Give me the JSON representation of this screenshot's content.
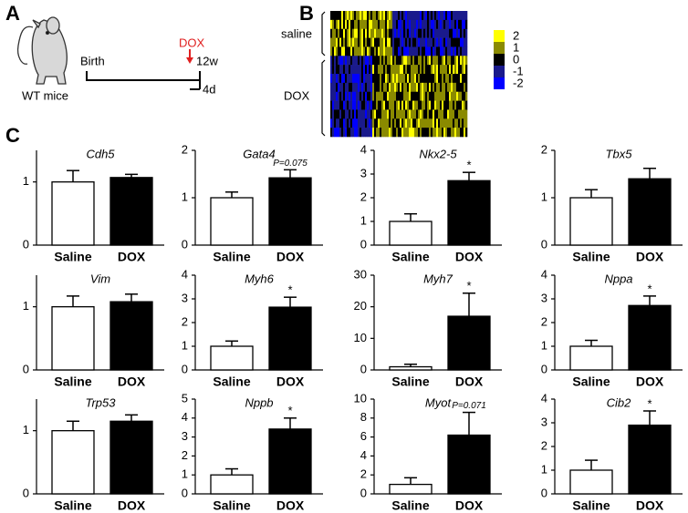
{
  "panel_labels": {
    "a": "A",
    "b": "B",
    "c": "C"
  },
  "panel_a": {
    "mouse_label": "WT mice",
    "birth": "Birth",
    "treatment": "DOX",
    "age": "12w",
    "duration": "4d"
  },
  "panel_b": {
    "groups": [
      "saline",
      "DOX"
    ],
    "colorbar": [
      {
        "value": 2,
        "color": "#ffff00"
      },
      {
        "value": 1,
        "color": "#8a8a00"
      },
      {
        "value": 0,
        "color": "#000000"
      },
      {
        "value": -1,
        "color": "#1a1a8c"
      },
      {
        "value": -2,
        "color": "#0000ff"
      }
    ]
  },
  "chart_data": [
    {
      "type": "bar",
      "title": "Cdh5",
      "categories": [
        "Saline",
        "DOX"
      ],
      "values": [
        1.0,
        1.07
      ],
      "errors": [
        0.18,
        0.05
      ],
      "colors": [
        "#ffffff",
        "#000000"
      ],
      "ylim": [
        0,
        1.5
      ],
      "yticks": [
        0,
        1
      ]
    },
    {
      "type": "bar",
      "title": "Gata4",
      "categories": [
        "Saline",
        "DOX"
      ],
      "values": [
        1.0,
        1.42
      ],
      "errors": [
        0.12,
        0.17
      ],
      "colors": [
        "#ffffff",
        "#000000"
      ],
      "ylim": [
        0,
        2
      ],
      "yticks": [
        0,
        1,
        2
      ],
      "annotation": "P=0.075"
    },
    {
      "type": "bar",
      "title": "Nkx2-5",
      "categories": [
        "Saline",
        "DOX"
      ],
      "values": [
        1.0,
        2.72
      ],
      "errors": [
        0.32,
        0.35
      ],
      "colors": [
        "#ffffff",
        "#000000"
      ],
      "ylim": [
        0,
        4
      ],
      "yticks": [
        0,
        1,
        2,
        3,
        4
      ],
      "annotation": "*"
    },
    {
      "type": "bar",
      "title": "Tbx5",
      "categories": [
        "Saline",
        "DOX"
      ],
      "values": [
        1.0,
        1.4
      ],
      "errors": [
        0.17,
        0.22
      ],
      "colors": [
        "#ffffff",
        "#000000"
      ],
      "ylim": [
        0,
        2
      ],
      "yticks": [
        0,
        1,
        2
      ]
    },
    {
      "type": "bar",
      "title": "Vim",
      "categories": [
        "Saline",
        "DOX"
      ],
      "values": [
        1.0,
        1.08
      ],
      "errors": [
        0.17,
        0.12
      ],
      "colors": [
        "#ffffff",
        "#000000"
      ],
      "ylim": [
        0,
        1.5
      ],
      "yticks": [
        0,
        1
      ]
    },
    {
      "type": "bar",
      "title": "Myh6",
      "categories": [
        "Saline",
        "DOX"
      ],
      "values": [
        1.0,
        2.65
      ],
      "errors": [
        0.22,
        0.42
      ],
      "colors": [
        "#ffffff",
        "#000000"
      ],
      "ylim": [
        0,
        4
      ],
      "yticks": [
        0,
        1,
        2,
        3,
        4
      ],
      "annotation": "*"
    },
    {
      "type": "bar",
      "title": "Myh7",
      "categories": [
        "Saline",
        "DOX"
      ],
      "values": [
        1.0,
        17
      ],
      "errors": [
        0.8,
        7.3
      ],
      "colors": [
        "#ffffff",
        "#000000"
      ],
      "ylim": [
        0,
        30
      ],
      "yticks": [
        0,
        10,
        20,
        30
      ],
      "annotation": "*"
    },
    {
      "type": "bar",
      "title": "Nppa",
      "categories": [
        "Saline",
        "DOX"
      ],
      "values": [
        1.0,
        2.72
      ],
      "errors": [
        0.25,
        0.4
      ],
      "colors": [
        "#ffffff",
        "#000000"
      ],
      "ylim": [
        0,
        4
      ],
      "yticks": [
        0,
        1,
        2,
        3,
        4
      ],
      "annotation": "*"
    },
    {
      "type": "bar",
      "title": "Trp53",
      "categories": [
        "Saline",
        "DOX"
      ],
      "values": [
        1.0,
        1.15
      ],
      "errors": [
        0.15,
        0.1
      ],
      "colors": [
        "#ffffff",
        "#000000"
      ],
      "ylim": [
        0,
        1.5
      ],
      "yticks": [
        0,
        1
      ]
    },
    {
      "type": "bar",
      "title": "Nppb",
      "categories": [
        "Saline",
        "DOX"
      ],
      "values": [
        1.0,
        3.42
      ],
      "errors": [
        0.32,
        0.58
      ],
      "colors": [
        "#ffffff",
        "#000000"
      ],
      "ylim": [
        0,
        5
      ],
      "yticks": [
        0,
        1,
        2,
        3,
        4,
        5
      ],
      "annotation": "*"
    },
    {
      "type": "bar",
      "title": "Myot",
      "categories": [
        "Saline",
        "DOX"
      ],
      "values": [
        1.0,
        6.2
      ],
      "errors": [
        0.7,
        2.4
      ],
      "colors": [
        "#ffffff",
        "#000000"
      ],
      "ylim": [
        0,
        10
      ],
      "yticks": [
        0,
        2,
        4,
        6,
        8,
        10
      ],
      "annotation": "P=0.071"
    },
    {
      "type": "bar",
      "title": "Cib2",
      "categories": [
        "Saline",
        "DOX"
      ],
      "values": [
        1.0,
        2.9
      ],
      "errors": [
        0.42,
        0.6
      ],
      "colors": [
        "#ffffff",
        "#000000"
      ],
      "ylim": [
        0,
        4
      ],
      "yticks": [
        0,
        1,
        2,
        3,
        4
      ],
      "annotation": "*"
    }
  ]
}
